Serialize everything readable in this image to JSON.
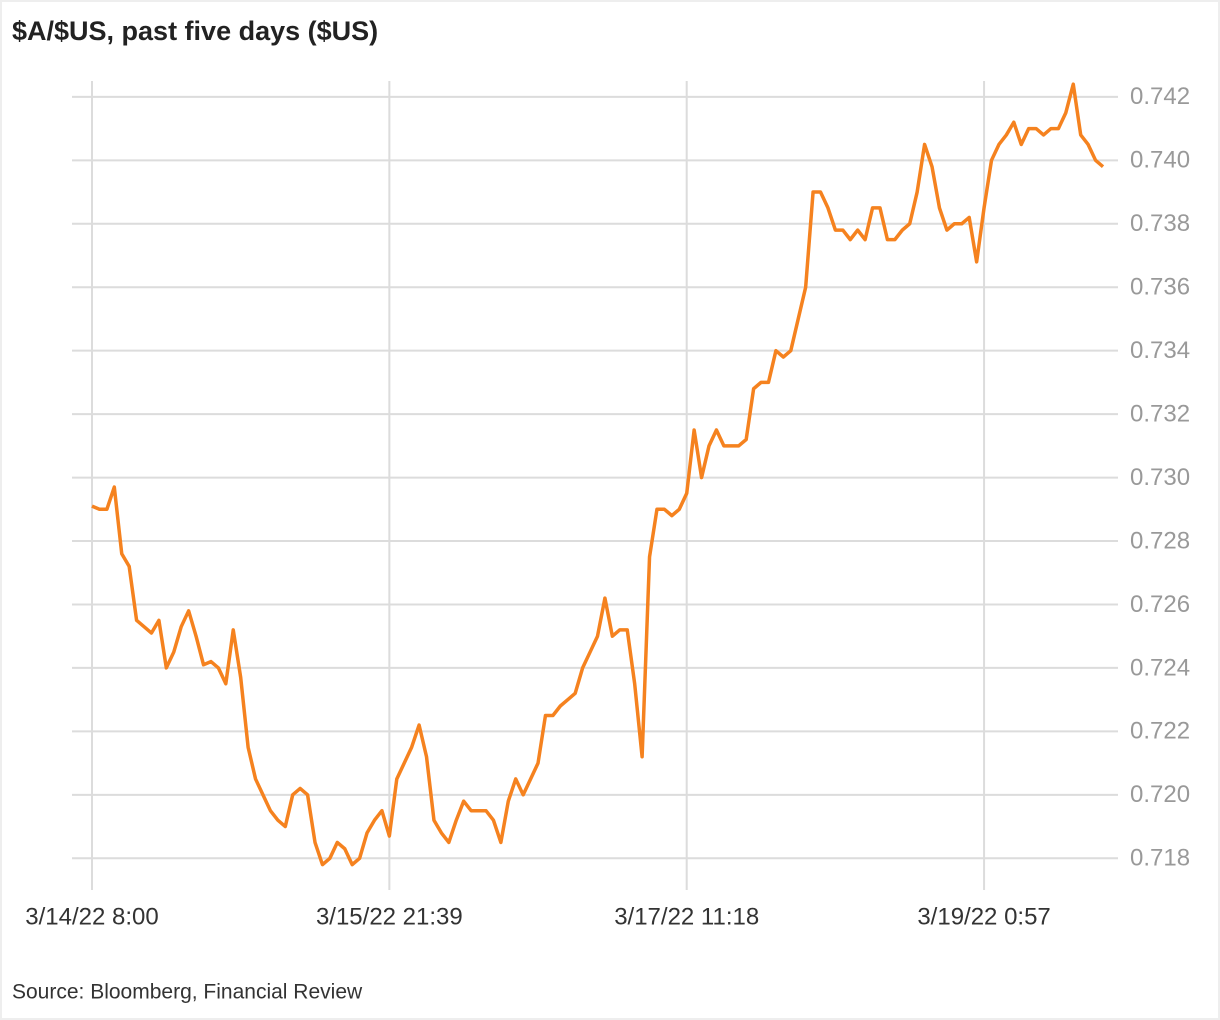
{
  "chart_data": {
    "type": "line",
    "title": "$A/$US, past five days ($US)",
    "source": "Source: Bloomberg, Financial Review",
    "color": "#f5821f",
    "grid": true,
    "categories": [
      "3/14/22 8:00",
      null,
      null,
      null,
      null,
      null,
      null,
      null,
      null,
      null,
      null,
      null,
      null,
      null,
      null,
      null,
      null,
      null,
      null,
      null,
      null,
      null,
      null,
      null,
      null,
      null,
      null,
      null,
      null,
      null,
      null,
      null,
      null,
      null,
      null,
      null,
      null,
      null,
      null,
      null,
      "3/15/22 21:39",
      null,
      null,
      null,
      null,
      null,
      null,
      null,
      null,
      null,
      null,
      null,
      null,
      null,
      null,
      null,
      null,
      null,
      null,
      null,
      null,
      null,
      null,
      null,
      null,
      null,
      null,
      null,
      null,
      null,
      null,
      null,
      null,
      null,
      null,
      null,
      null,
      null,
      null,
      null,
      "3/17/22 11:18",
      null,
      null,
      null,
      null,
      null,
      null,
      null,
      null,
      null,
      null,
      null,
      null,
      null,
      null,
      null,
      null,
      null,
      null,
      null,
      null,
      null,
      null,
      null,
      null,
      null,
      null,
      null,
      null,
      null,
      null,
      null,
      null,
      null,
      null,
      null,
      null,
      null,
      null,
      null,
      "3/19/22 0:57",
      null,
      null,
      null,
      null,
      null,
      null,
      null,
      null,
      null,
      null,
      null,
      null,
      null,
      null,
      null,
      null
    ],
    "values": [
      0.7291,
      0.729,
      0.729,
      0.7297,
      0.7276,
      0.7272,
      0.7255,
      0.7253,
      0.7251,
      0.7255,
      0.724,
      0.7245,
      0.7253,
      0.7258,
      0.725,
      0.7241,
      0.7242,
      0.724,
      0.7235,
      0.7252,
      0.7237,
      0.7215,
      0.7205,
      0.72,
      0.7195,
      0.7192,
      0.719,
      0.72,
      0.7202,
      0.72,
      0.7185,
      0.7178,
      0.718,
      0.7185,
      0.7183,
      0.7178,
      0.718,
      0.7188,
      0.7192,
      0.7195,
      0.7187,
      0.7205,
      0.721,
      0.7215,
      0.7222,
      0.7212,
      0.7192,
      0.7188,
      0.7185,
      0.7192,
      0.7198,
      0.7195,
      0.7195,
      0.7195,
      0.7192,
      0.7185,
      0.7198,
      0.7205,
      0.72,
      0.7205,
      0.721,
      0.7225,
      0.7225,
      0.7228,
      0.723,
      0.7232,
      0.724,
      0.7245,
      0.725,
      0.7262,
      0.725,
      0.7252,
      0.7252,
      0.7235,
      0.7212,
      0.7275,
      0.729,
      0.729,
      0.7288,
      0.729,
      0.7295,
      0.7315,
      0.73,
      0.731,
      0.7315,
      0.731,
      0.731,
      0.731,
      0.7312,
      0.7328,
      0.733,
      0.733,
      0.734,
      0.7338,
      0.734,
      0.735,
      0.736,
      0.739,
      0.739,
      0.7385,
      0.7378,
      0.7378,
      0.7375,
      0.7378,
      0.7375,
      0.7385,
      0.7385,
      0.7375,
      0.7375,
      0.7378,
      0.738,
      0.739,
      0.7405,
      0.7398,
      0.7385,
      0.7378,
      0.738,
      0.738,
      0.7382,
      0.7368,
      0.7385,
      0.74,
      0.7405,
      0.7408,
      0.7412,
      0.7405,
      0.741,
      0.741,
      0.7408,
      0.741,
      0.741,
      0.7415,
      0.7424,
      0.7408,
      0.7405,
      0.74,
      0.7398
    ],
    "ylim": [
      0.717,
      0.7425
    ],
    "yticks": [
      0.718,
      {
        "value": 0.72,
        "label": "0.720"
      },
      0.722,
      0.724,
      0.726,
      0.728,
      {
        "value": 0.73,
        "label": "0.730"
      },
      0.732,
      0.734,
      0.736,
      0.738,
      {
        "value": 0.74,
        "label": "0.740"
      },
      0.742
    ]
  }
}
